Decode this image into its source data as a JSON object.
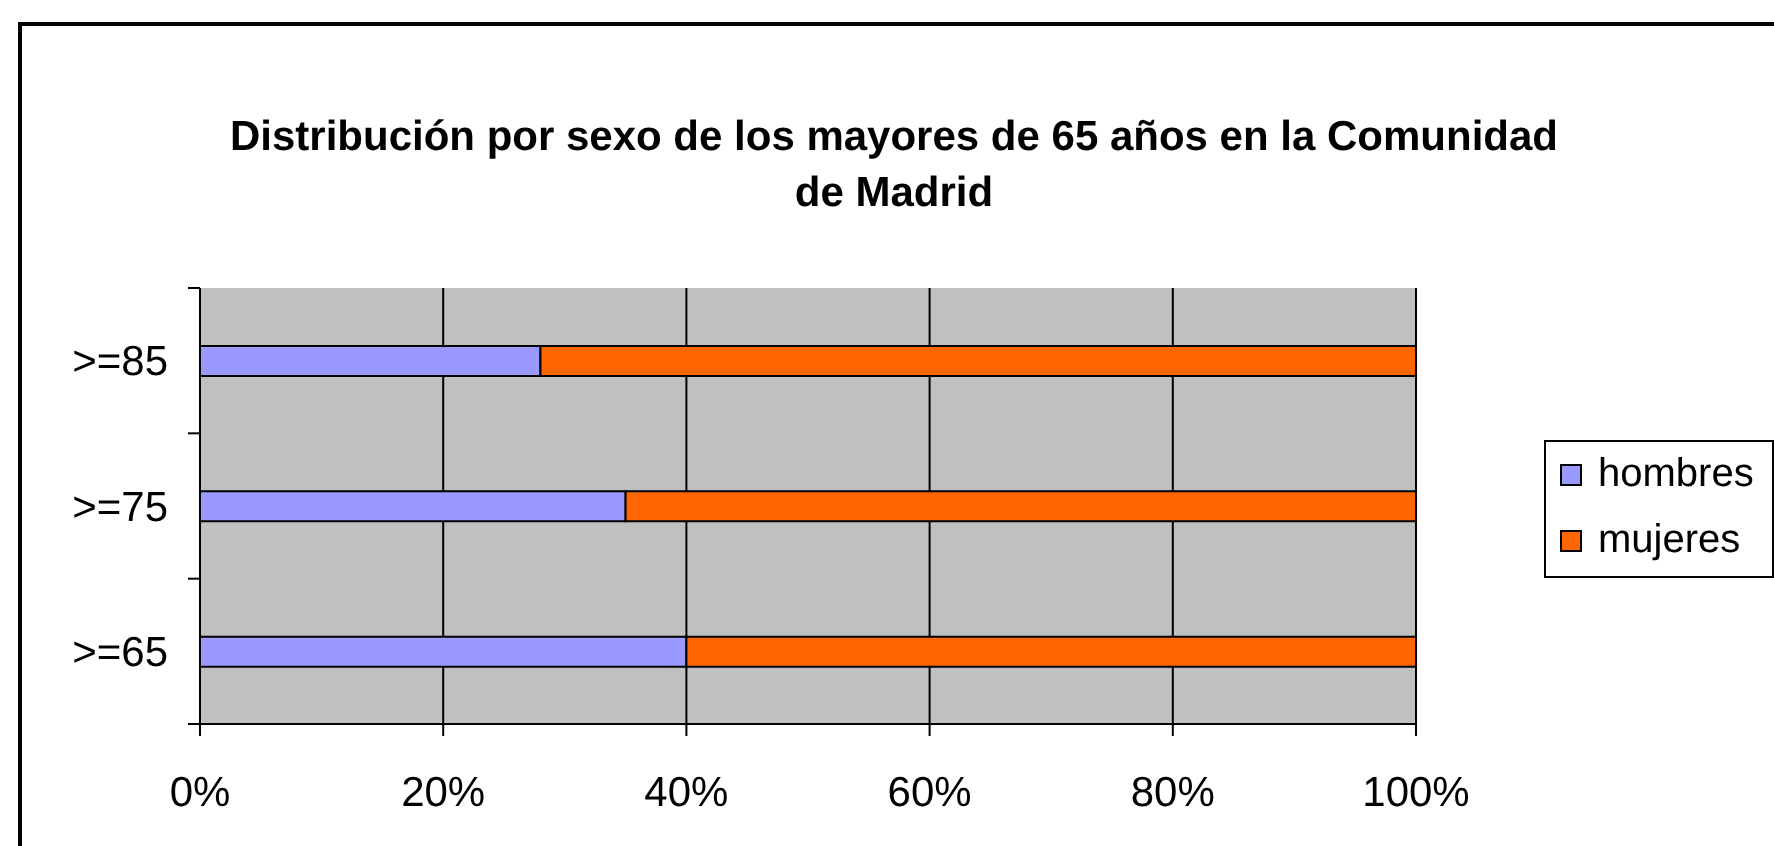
{
  "chart_data": {
    "type": "bar",
    "title": "Distribución por sexo de los mayores de 65 años en la Comunidad de Madrid",
    "categories": [
      ">=85",
      ">=75",
      ">=65"
    ],
    "orientation": "horizontal",
    "stacked": true,
    "series": [
      {
        "name": "hombres",
        "color": "#9999ff",
        "values": [
          28,
          35,
          40
        ]
      },
      {
        "name": "mujeres",
        "color": "#ff6600",
        "values": [
          72,
          65,
          60
        ]
      }
    ],
    "xlim": [
      0,
      100
    ],
    "xticks": [
      {
        "value": 0,
        "label": "0%"
      },
      {
        "value": 20,
        "label": "20%"
      },
      {
        "value": 40,
        "label": "40%"
      },
      {
        "value": 60,
        "label": "60%"
      },
      {
        "value": 80,
        "label": "80%"
      },
      {
        "value": 100,
        "label": "100%"
      }
    ],
    "grid": "x",
    "legend": "right"
  }
}
